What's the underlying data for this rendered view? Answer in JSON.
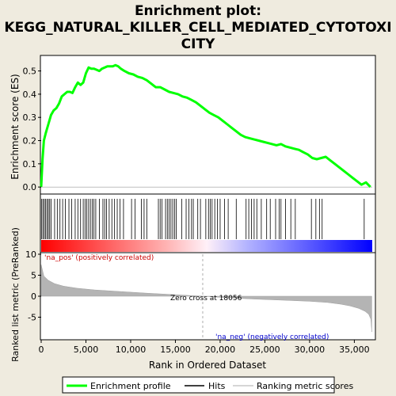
{
  "title_lines": [
    "Enrichment plot:",
    "KEGG_NATURAL_KILLER_CELL_MEDIATED_CYTOTOXI",
    "CITY"
  ],
  "legend": [
    {
      "label": "Enrichment profile",
      "color": "#00ff00",
      "kind": "line"
    },
    {
      "label": "Hits",
      "color": "#000000",
      "kind": "line"
    },
    {
      "label": "Ranking metric scores",
      "color": "#c8c8c8",
      "kind": "line"
    }
  ],
  "colors": {
    "background": "#efebdf",
    "es_curve": "#00ff00",
    "metric_fill": "#b4b4b4",
    "pos_label": "#cc0000",
    "neg_label": "#0000cc",
    "zero_line": "#999999"
  },
  "chart_data": [
    {
      "type": "line",
      "name": "enrichment_profile",
      "ylabel": "Enrichment score (ES)",
      "xlim": [
        0,
        37000
      ],
      "ylim": [
        -0.02,
        0.56
      ],
      "yticks": [
        "0.0",
        "0.1",
        "0.2",
        "0.3",
        "0.4",
        "0.5"
      ],
      "x": [
        0,
        150,
        300,
        500,
        800,
        1100,
        1400,
        1700,
        2000,
        2300,
        2600,
        2900,
        3200,
        3500,
        3800,
        4100,
        4400,
        4700,
        5000,
        5300,
        5600,
        5900,
        6200,
        6500,
        6800,
        7100,
        7400,
        7700,
        8000,
        8300,
        8600,
        8900,
        9300,
        9800,
        10300,
        10800,
        11300,
        11800,
        12300,
        12800,
        13300,
        13800,
        14300,
        14800,
        15300,
        15800,
        16300,
        16800,
        17300,
        17800,
        18300,
        18800,
        19300,
        19800,
        20300,
        20800,
        21300,
        21800,
        22300,
        22800,
        23300,
        23800,
        24300,
        24800,
        25300,
        25800,
        26300,
        26800,
        27300,
        27800,
        28300,
        28800,
        29300,
        29800,
        30300,
        30800,
        31300,
        31800,
        32300,
        32800,
        33300,
        33800,
        34300,
        34800,
        35300,
        35800,
        36300,
        36800
      ],
      "y": [
        0.0,
        0.12,
        0.2,
        0.23,
        0.27,
        0.31,
        0.33,
        0.34,
        0.36,
        0.39,
        0.4,
        0.41,
        0.41,
        0.405,
        0.43,
        0.45,
        0.44,
        0.45,
        0.49,
        0.515,
        0.51,
        0.51,
        0.505,
        0.5,
        0.51,
        0.515,
        0.52,
        0.52,
        0.52,
        0.525,
        0.52,
        0.51,
        0.5,
        0.49,
        0.485,
        0.475,
        0.47,
        0.46,
        0.445,
        0.43,
        0.43,
        0.42,
        0.41,
        0.405,
        0.4,
        0.39,
        0.385,
        0.375,
        0.365,
        0.35,
        0.335,
        0.32,
        0.31,
        0.3,
        0.285,
        0.27,
        0.255,
        0.24,
        0.225,
        0.215,
        0.21,
        0.205,
        0.2,
        0.195,
        0.19,
        0.185,
        0.18,
        0.185,
        0.175,
        0.17,
        0.165,
        0.16,
        0.15,
        0.14,
        0.125,
        0.12,
        0.125,
        0.13,
        0.115,
        0.1,
        0.085,
        0.07,
        0.055,
        0.04,
        0.025,
        0.01,
        0.02,
        0.0
      ]
    },
    {
      "type": "scatter",
      "name": "hits",
      "x": [
        60,
        200,
        350,
        500,
        650,
        800,
        950,
        1100,
        1500,
        1800,
        2100,
        2400,
        2700,
        3100,
        3400,
        3800,
        4100,
        4400,
        4700,
        4900,
        5100,
        5300,
        5500,
        5700,
        5900,
        6100,
        6500,
        6900,
        7100,
        7300,
        7600,
        7900,
        8200,
        8500,
        8800,
        9200,
        10100,
        10500,
        11200,
        11500,
        11800,
        13100,
        13300,
        13500,
        13900,
        14100,
        14300,
        14500,
        14700,
        14900,
        15100,
        15700,
        16200,
        16500,
        16800,
        17000,
        17500,
        17800,
        18400,
        18700,
        18900,
        19100,
        19400,
        19700,
        20000,
        20500,
        20900,
        21800,
        22900,
        23200,
        23500,
        23800,
        24100,
        24600,
        25200,
        25600,
        26200,
        26600,
        26800,
        27300,
        27900,
        28400,
        30200,
        30700,
        31100,
        31400,
        36100
      ]
    },
    {
      "type": "area",
      "name": "ranked_list_metric",
      "xlabel": "Rank in Ordered Dataset",
      "ylabel": "Ranked list metric (PreRanked)",
      "ylim": [
        -10,
        10
      ],
      "yticks": [
        "10",
        "5",
        "0",
        "-5"
      ],
      "xticks": [
        "0",
        "5,000",
        "10,000",
        "15,000",
        "20,000",
        "25,000",
        "30,000",
        "35,000"
      ],
      "x": [
        0,
        300,
        800,
        1500,
        2500,
        4000,
        6000,
        9000,
        12000,
        15000,
        18056,
        21000,
        24000,
        27000,
        30000,
        32000,
        33500,
        34500,
        35500,
        36200,
        36600,
        36850,
        36950
      ],
      "y": [
        7.5,
        4.8,
        3.8,
        3.0,
        2.4,
        1.9,
        1.5,
        1.1,
        0.7,
        0.35,
        0,
        -0.4,
        -0.7,
        -0.95,
        -1.2,
        -1.5,
        -1.9,
        -2.3,
        -2.9,
        -3.6,
        -4.3,
        -5.5,
        -8.5
      ],
      "zero_cross_label": "Zero cross at 18056",
      "pos_label": "'na_pos' (positively correlated)",
      "neg_label": "'na_neg' (negatively correlated)"
    }
  ]
}
